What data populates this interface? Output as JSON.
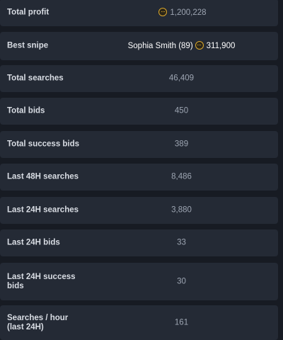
{
  "stats": {
    "total_profit": {
      "label": "Total profit",
      "value": "1,200,228",
      "icon": "coin-icon"
    },
    "best_snipe": {
      "label": "Best snipe",
      "player": "Sophia Smith (89)",
      "value": "311,900",
      "icon": "coin-icon"
    },
    "total_searches": {
      "label": "Total searches",
      "value": "46,409"
    },
    "total_bids": {
      "label": "Total bids",
      "value": "450"
    },
    "total_success_bids": {
      "label": "Total success bids",
      "value": "389"
    },
    "last_48h_searches": {
      "label": "Last 48H searches",
      "value": "8,486"
    },
    "last_24h_searches": {
      "label": "Last 24H searches",
      "value": "3,880"
    },
    "last_24h_bids": {
      "label": "Last 24H bids",
      "value": "33"
    },
    "last_24h_success_bids": {
      "label": "Last 24H success bids",
      "value": "30"
    },
    "searches_per_hour": {
      "label": "Searches / hour (last 24H)",
      "value": "161"
    }
  },
  "colors": {
    "background": "#171b23",
    "row": "#242a35",
    "label": "#d9dde4",
    "value": "#9da5b2",
    "coin": "#d9a62c"
  }
}
